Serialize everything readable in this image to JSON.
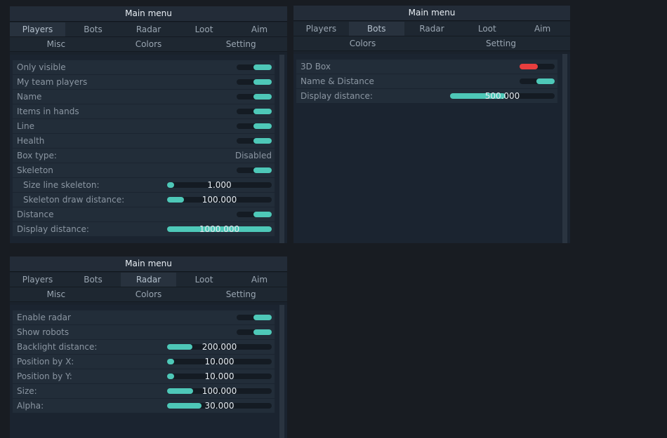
{
  "accent": "#4ec8b8",
  "off_color": "#e83e3e",
  "panel1": {
    "title": "Main menu",
    "tabs_row1": [
      "Players",
      "Bots",
      "Radar",
      "Loot",
      "Aim"
    ],
    "tabs_row2": [
      "Misc",
      "Colors",
      "Setting"
    ],
    "active_tab": "Players",
    "items": [
      {
        "type": "toggle",
        "label": "Only visible",
        "on": true
      },
      {
        "type": "toggle",
        "label": "My team players",
        "on": true
      },
      {
        "type": "toggle",
        "label": "Name",
        "on": true
      },
      {
        "type": "toggle",
        "label": "Items in hands",
        "on": true
      },
      {
        "type": "toggle",
        "label": "Line",
        "on": true
      },
      {
        "type": "toggle",
        "label": "Health",
        "on": true
      },
      {
        "type": "select",
        "label": "Box type:",
        "value": "Disabled"
      },
      {
        "type": "toggle",
        "label": "Skeleton",
        "on": true
      },
      {
        "type": "slider",
        "label": "Size line skeleton:",
        "value": "1.000",
        "fraction": 0.07,
        "indent": true
      },
      {
        "type": "slider",
        "label": "Skeleton draw distance:",
        "value": "100.000",
        "fraction": 0.16,
        "indent": true
      },
      {
        "type": "toggle",
        "label": "Distance",
        "on": true
      },
      {
        "type": "slider",
        "label": "Display distance:",
        "value": "1000.000",
        "fraction": 1.0
      }
    ]
  },
  "panel2": {
    "title": "Main menu",
    "tabs_row1": [
      "Players",
      "Bots",
      "Radar",
      "Loot",
      "Aim"
    ],
    "tabs_row2": [
      "Colors",
      "Setting"
    ],
    "active_tab": "Bots",
    "items": [
      {
        "type": "toggle",
        "label": "3D Box",
        "on": false
      },
      {
        "type": "toggle",
        "label": "Name & Distance",
        "on": true
      },
      {
        "type": "slider",
        "label": "Display distance:",
        "value": "500.000",
        "fraction": 0.53
      }
    ]
  },
  "panel3": {
    "title": "Main menu",
    "tabs_row1": [
      "Players",
      "Bots",
      "Radar",
      "Loot",
      "Aim"
    ],
    "tabs_row2": [
      "Misc",
      "Colors",
      "Setting"
    ],
    "active_tab": "Radar",
    "items": [
      {
        "type": "toggle",
        "label": "Enable radar",
        "on": true
      },
      {
        "type": "toggle",
        "label": "Show robots",
        "on": true
      },
      {
        "type": "slider",
        "label": "Backlight distance:",
        "value": "200.000",
        "fraction": 0.24
      },
      {
        "type": "slider",
        "label": "Position by X:",
        "value": "10.000",
        "fraction": 0.07
      },
      {
        "type": "slider",
        "label": "Position by Y:",
        "value": "10.000",
        "fraction": 0.07
      },
      {
        "type": "slider",
        "label": "Size:",
        "value": "100.000",
        "fraction": 0.25
      },
      {
        "type": "slider",
        "label": "Alpha:",
        "value": "30.000",
        "fraction": 0.33
      }
    ]
  }
}
